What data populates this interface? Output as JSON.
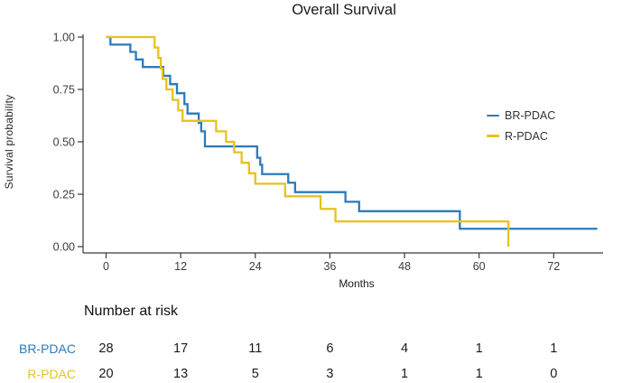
{
  "title": "Overall Survival",
  "chart_data": {
    "type": "line",
    "subtype": "kaplan-meier-step-curve",
    "title": "Overall Survival",
    "xlabel": "Months",
    "ylabel": "Survival probability",
    "xlim": [
      0,
      80
    ],
    "ylim": [
      0.0,
      1.0
    ],
    "grid": false,
    "legend_position": "right-middle",
    "x_ticks": [
      0,
      12,
      24,
      36,
      48,
      60,
      72
    ],
    "y_ticks": [
      {
        "v": 1.0,
        "label": "1.00"
      },
      {
        "v": 0.75,
        "label": "0.75"
      },
      {
        "v": 0.5,
        "label": "0.50"
      },
      {
        "v": 0.25,
        "label": "0.25"
      },
      {
        "v": 0.0,
        "label": "0.00"
      }
    ],
    "series": [
      {
        "name": "BR-PDAC",
        "color": "#2B7BBA",
        "n": 28,
        "end_month": 79,
        "steps": [
          [
            0,
            1.0
          ],
          [
            0.7,
            0.964
          ],
          [
            3.9,
            0.929
          ],
          [
            4.8,
            0.893
          ],
          [
            5.9,
            0.857
          ],
          [
            9.2,
            0.815
          ],
          [
            10.3,
            0.775
          ],
          [
            11.4,
            0.732
          ],
          [
            12.6,
            0.68
          ],
          [
            13.1,
            0.635
          ],
          [
            14.9,
            0.59
          ],
          [
            15.3,
            0.55
          ],
          [
            15.9,
            0.478
          ],
          [
            24.3,
            0.424
          ],
          [
            24.8,
            0.39
          ],
          [
            25.1,
            0.346
          ],
          [
            29.3,
            0.305
          ],
          [
            30.4,
            0.26
          ],
          [
            38.5,
            0.214
          ],
          [
            40.7,
            0.169
          ],
          [
            56.9,
            0.085
          ]
        ]
      },
      {
        "name": "R-PDAC",
        "color": "#E8C21D",
        "n": 20,
        "end_month": 64.7,
        "steps": [
          [
            0,
            1.0
          ],
          [
            7.8,
            0.95
          ],
          [
            8.4,
            0.9
          ],
          [
            8.8,
            0.85
          ],
          [
            9.1,
            0.8
          ],
          [
            9.7,
            0.75
          ],
          [
            10.7,
            0.7
          ],
          [
            11.6,
            0.65
          ],
          [
            12.3,
            0.6
          ],
          [
            17.7,
            0.55
          ],
          [
            19.3,
            0.5
          ],
          [
            20.6,
            0.45
          ],
          [
            21.8,
            0.4
          ],
          [
            23.0,
            0.35
          ],
          [
            24.0,
            0.3
          ],
          [
            28.8,
            0.24
          ],
          [
            34.5,
            0.18
          ],
          [
            36.9,
            0.12
          ],
          [
            64.7,
            0.0
          ]
        ]
      }
    ]
  },
  "risk_table": {
    "header": "Number at risk",
    "time_points": [
      0,
      12,
      24,
      36,
      48,
      60,
      72
    ],
    "rows": [
      {
        "label": "BR-PDAC",
        "color": "#2B7BBA",
        "values": [
          "28",
          "17",
          "11",
          "6",
          "4",
          "1",
          "1"
        ]
      },
      {
        "label": "R-PDAC",
        "color": "#E8C21D",
        "values": [
          "20",
          "13",
          "5",
          "3",
          "1",
          "1",
          "0"
        ]
      }
    ]
  },
  "colors": {
    "axis": "#3a3a3a",
    "tick_text": "#3c3c3c",
    "title_text": "#1a1a1a"
  }
}
